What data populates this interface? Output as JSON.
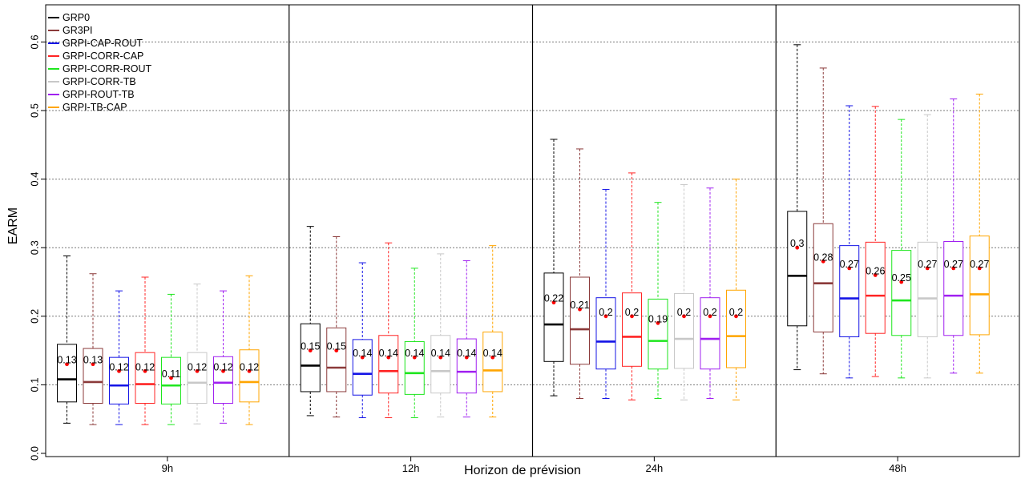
{
  "chart_data": {
    "type": "boxplot",
    "xlabel": "Horizon de prévision",
    "ylabel": "EARM",
    "ylim": [
      0,
      0.65
    ],
    "yticks": [
      0.0,
      0.1,
      0.2,
      0.3,
      0.4,
      0.5,
      0.6
    ],
    "ytick_labels": [
      "0.0",
      "0.1",
      "0.2",
      "0.3",
      "0.4",
      "0.5",
      "0.6"
    ],
    "grid": "horizontal-dotted",
    "legend_position": "top-left",
    "groups": [
      "9h",
      "12h",
      "24h",
      "48h"
    ],
    "series": [
      {
        "name": "GRP0",
        "color": "#000000",
        "stats": [
          {
            "whislo": 0.044,
            "q1": 0.075,
            "med": 0.108,
            "q3": 0.159,
            "whishi": 0.288,
            "mean": 0.13,
            "mean_label": "0.13"
          },
          {
            "whislo": 0.055,
            "q1": 0.09,
            "med": 0.128,
            "q3": 0.189,
            "whishi": 0.331,
            "mean": 0.15,
            "mean_label": "0.15"
          },
          {
            "whislo": 0.084,
            "q1": 0.134,
            "med": 0.188,
            "q3": 0.263,
            "whishi": 0.458,
            "mean": 0.22,
            "mean_label": "0.22"
          },
          {
            "whislo": 0.122,
            "q1": 0.186,
            "med": 0.259,
            "q3": 0.353,
            "whishi": 0.596,
            "mean": 0.3,
            "mean_label": "0.3"
          }
        ]
      },
      {
        "name": "GR3PI",
        "color": "#8b3a3a",
        "stats": [
          {
            "whislo": 0.042,
            "q1": 0.073,
            "med": 0.104,
            "q3": 0.153,
            "whishi": 0.262,
            "mean": 0.13,
            "mean_label": "0.13"
          },
          {
            "whislo": 0.053,
            "q1": 0.09,
            "med": 0.125,
            "q3": 0.183,
            "whishi": 0.316,
            "mean": 0.15,
            "mean_label": "0.15"
          },
          {
            "whislo": 0.08,
            "q1": 0.13,
            "med": 0.181,
            "q3": 0.257,
            "whishi": 0.444,
            "mean": 0.21,
            "mean_label": "0.21"
          },
          {
            "whislo": 0.116,
            "q1": 0.177,
            "med": 0.248,
            "q3": 0.335,
            "whishi": 0.562,
            "mean": 0.28,
            "mean_label": "0.28"
          }
        ]
      },
      {
        "name": "GRPI-CAP-ROUT",
        "color": "#1414e6",
        "stats": [
          {
            "whislo": 0.042,
            "q1": 0.072,
            "med": 0.099,
            "q3": 0.14,
            "whishi": 0.237,
            "mean": 0.12,
            "mean_label": "0.12"
          },
          {
            "whislo": 0.052,
            "q1": 0.085,
            "med": 0.116,
            "q3": 0.166,
            "whishi": 0.278,
            "mean": 0.14,
            "mean_label": "0.14"
          },
          {
            "whislo": 0.08,
            "q1": 0.123,
            "med": 0.163,
            "q3": 0.227,
            "whishi": 0.385,
            "mean": 0.2,
            "mean_label": "0.2"
          },
          {
            "whislo": 0.11,
            "q1": 0.17,
            "med": 0.226,
            "q3": 0.303,
            "whishi": 0.507,
            "mean": 0.27,
            "mean_label": "0.27"
          }
        ]
      },
      {
        "name": "GRPI-CORR-CAP",
        "color": "#ff2424",
        "stats": [
          {
            "whislo": 0.042,
            "q1": 0.073,
            "med": 0.101,
            "q3": 0.147,
            "whishi": 0.257,
            "mean": 0.12,
            "mean_label": "0.12"
          },
          {
            "whislo": 0.052,
            "q1": 0.088,
            "med": 0.12,
            "q3": 0.172,
            "whishi": 0.307,
            "mean": 0.14,
            "mean_label": "0.14"
          },
          {
            "whislo": 0.078,
            "q1": 0.127,
            "med": 0.17,
            "q3": 0.234,
            "whishi": 0.409,
            "mean": 0.2,
            "mean_label": "0.2"
          },
          {
            "whislo": 0.112,
            "q1": 0.175,
            "med": 0.23,
            "q3": 0.308,
            "whishi": 0.506,
            "mean": 0.26,
            "mean_label": "0.26"
          }
        ]
      },
      {
        "name": "GRPI-CORR-ROUT",
        "color": "#1ee61e",
        "stats": [
          {
            "whislo": 0.042,
            "q1": 0.072,
            "med": 0.099,
            "q3": 0.14,
            "whishi": 0.232,
            "mean": 0.11,
            "mean_label": "0.11"
          },
          {
            "whislo": 0.052,
            "q1": 0.086,
            "med": 0.117,
            "q3": 0.163,
            "whishi": 0.27,
            "mean": 0.14,
            "mean_label": "0.14"
          },
          {
            "whislo": 0.08,
            "q1": 0.123,
            "med": 0.164,
            "q3": 0.225,
            "whishi": 0.366,
            "mean": 0.19,
            "mean_label": "0.19"
          },
          {
            "whislo": 0.11,
            "q1": 0.172,
            "med": 0.223,
            "q3": 0.296,
            "whishi": 0.487,
            "mean": 0.25,
            "mean_label": "0.25"
          }
        ]
      },
      {
        "name": "GRPI-CORR-TB",
        "color": "#c8c8c8",
        "stats": [
          {
            "whislo": 0.043,
            "q1": 0.073,
            "med": 0.103,
            "q3": 0.147,
            "whishi": 0.247,
            "mean": 0.12,
            "mean_label": "0.12"
          },
          {
            "whislo": 0.053,
            "q1": 0.088,
            "med": 0.12,
            "q3": 0.172,
            "whishi": 0.291,
            "mean": 0.14,
            "mean_label": "0.14"
          },
          {
            "whislo": 0.078,
            "q1": 0.124,
            "med": 0.167,
            "q3": 0.233,
            "whishi": 0.392,
            "mean": 0.2,
            "mean_label": "0.2"
          },
          {
            "whislo": 0.11,
            "q1": 0.17,
            "med": 0.226,
            "q3": 0.308,
            "whishi": 0.494,
            "mean": 0.27,
            "mean_label": "0.27"
          }
        ]
      },
      {
        "name": "GRPI-ROUT-TB",
        "color": "#a020f0",
        "stats": [
          {
            "whislo": 0.044,
            "q1": 0.073,
            "med": 0.103,
            "q3": 0.141,
            "whishi": 0.237,
            "mean": 0.12,
            "mean_label": "0.12"
          },
          {
            "whislo": 0.053,
            "q1": 0.088,
            "med": 0.119,
            "q3": 0.167,
            "whishi": 0.281,
            "mean": 0.14,
            "mean_label": "0.14"
          },
          {
            "whislo": 0.08,
            "q1": 0.123,
            "med": 0.167,
            "q3": 0.227,
            "whishi": 0.387,
            "mean": 0.2,
            "mean_label": "0.2"
          },
          {
            "whislo": 0.117,
            "q1": 0.172,
            "med": 0.23,
            "q3": 0.309,
            "whishi": 0.517,
            "mean": 0.27,
            "mean_label": "0.27"
          }
        ]
      },
      {
        "name": "GRPI-TB-CAP",
        "color": "#ffa500",
        "stats": [
          {
            "whislo": 0.042,
            "q1": 0.075,
            "med": 0.104,
            "q3": 0.151,
            "whishi": 0.259,
            "mean": 0.12,
            "mean_label": "0.12"
          },
          {
            "whislo": 0.053,
            "q1": 0.09,
            "med": 0.121,
            "q3": 0.177,
            "whishi": 0.303,
            "mean": 0.14,
            "mean_label": "0.14"
          },
          {
            "whislo": 0.078,
            "q1": 0.125,
            "med": 0.171,
            "q3": 0.238,
            "whishi": 0.4,
            "mean": 0.2,
            "mean_label": "0.2"
          },
          {
            "whislo": 0.117,
            "q1": 0.173,
            "med": 0.232,
            "q3": 0.317,
            "whishi": 0.524,
            "mean": 0.27,
            "mean_label": "0.27"
          }
        ]
      }
    ],
    "mean_marker_color": "#ff0000"
  }
}
